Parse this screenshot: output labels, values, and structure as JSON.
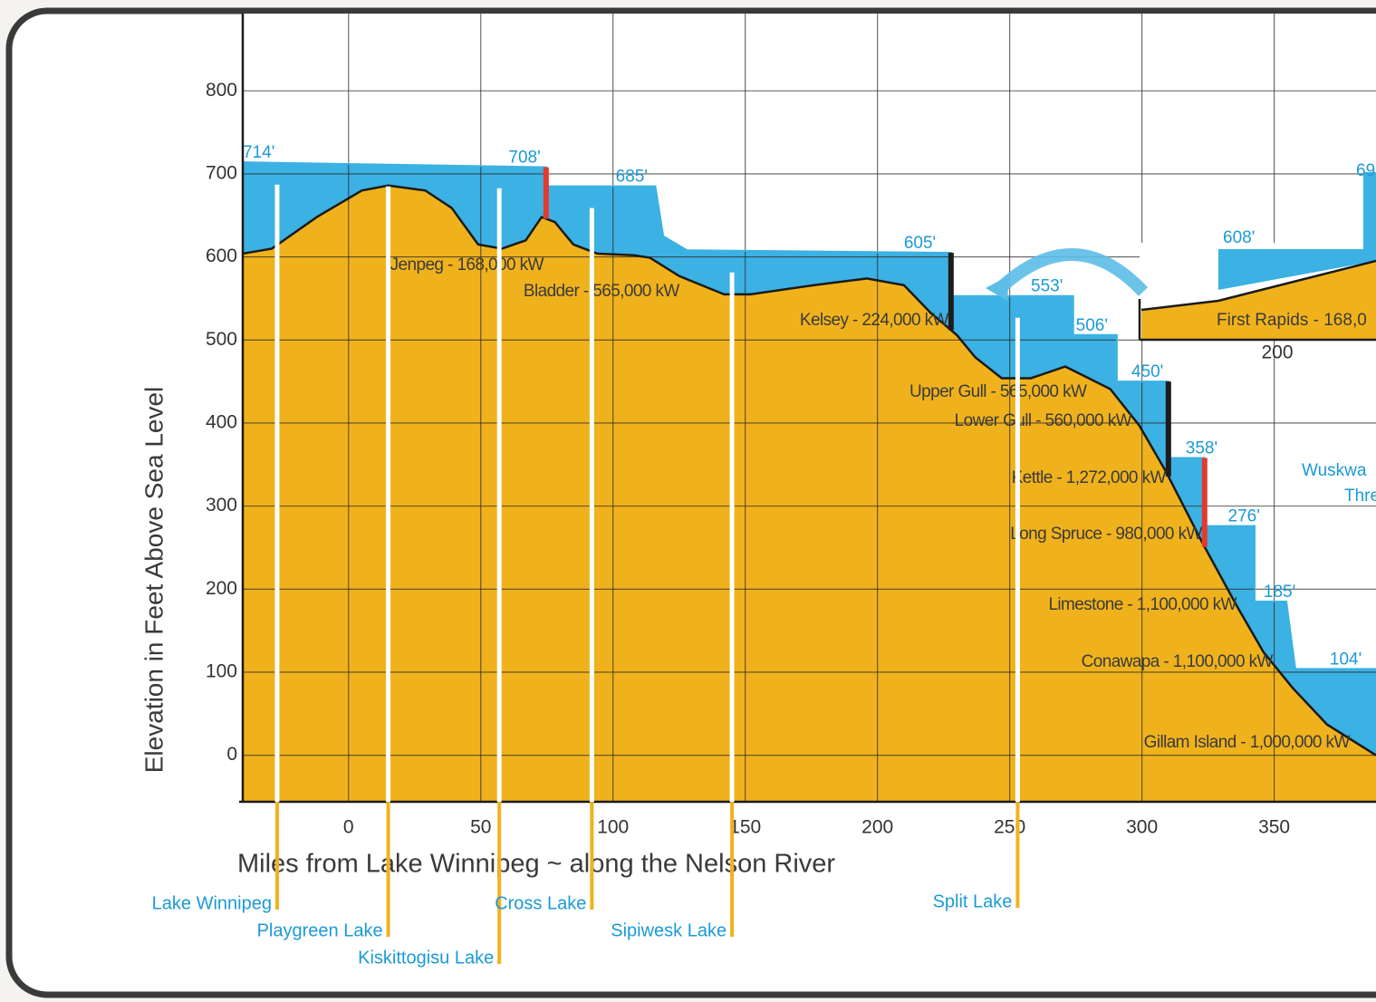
{
  "chart_data": {
    "type": "area",
    "ylabel": "Elevation in Feet Above Sea Level",
    "xlabel": "Miles from Lake Winnipeg ~ along the Nelson River",
    "xlim": [
      -40,
      388.5
    ],
    "ylim": [
      -56,
      893
    ],
    "xticks": [
      0,
      50,
      100,
      150,
      200,
      250,
      300,
      350
    ],
    "yticks": [
      0,
      100,
      200,
      300,
      400,
      500,
      600,
      700,
      800
    ],
    "grid": true,
    "terrain": {
      "color": "#f0b21c",
      "x": [
        -40,
        -29,
        -12,
        5,
        15,
        29,
        39,
        49,
        58,
        67,
        73,
        78,
        85,
        94,
        108,
        114,
        125,
        142,
        152,
        176,
        196,
        210,
        220,
        230,
        237,
        247,
        258,
        271,
        278,
        288,
        299,
        309,
        323,
        336,
        346,
        357,
        370,
        388.5
      ],
      "values": [
        604,
        610,
        648,
        680,
        686,
        680,
        659,
        615,
        610,
        620,
        648,
        642,
        615,
        604,
        602,
        599,
        577,
        555,
        555,
        566,
        574,
        566,
        533,
        506,
        479,
        454,
        454,
        468,
        457,
        441,
        397,
        342,
        255,
        179,
        124,
        81,
        37,
        0
      ]
    },
    "water_surface": {
      "color": "#3cb1e3",
      "x": [
        -40,
        74.7,
        74.7,
        116,
        119,
        128,
        227.8,
        227.8,
        274,
        274,
        290.5,
        290.5,
        310,
        310,
        323.7,
        323.7,
        342.6,
        342.6,
        354.6,
        358,
        388.5
      ],
      "values": [
        714,
        708,
        685,
        685,
        625,
        608,
        605,
        553,
        553,
        506,
        506,
        450,
        450,
        358,
        358,
        276,
        276,
        185,
        185,
        104,
        104
      ]
    },
    "water_levels": {
      "color": "#1b9ad6",
      "x": [
        -40,
        60.5,
        101,
        210,
        258,
        275,
        296,
        316.5,
        332.5,
        346,
        371
      ],
      "values": [
        714,
        708,
        685,
        605,
        553,
        506,
        450,
        358,
        276,
        185,
        104
      ],
      "value_labels": [
        "714'",
        "708'",
        "685'",
        "605'",
        "553'",
        "506'",
        "450'",
        "358'",
        "276'",
        "185'",
        "104'"
      ]
    },
    "dams": [
      {
        "label": "Jenpeg - 168,000 kW",
        "x": 74.7,
        "color": "#e23b2e"
      },
      {
        "label": "Bladder - 565,000 kW",
        "x": 125
      },
      {
        "label": "Kelsey - 224,000 kW",
        "x": 227.8,
        "color": "#1c1c1c"
      },
      {
        "label": "Upper Gull - 565,000 kW",
        "x": 279
      },
      {
        "label": "Lower Gull - 560,000 kW",
        "x": 296
      },
      {
        "label": "Kettle - 1,272,000 kW",
        "x": 310,
        "color": "#1c1c1c"
      },
      {
        "label": "Long Spruce - 980,000 kW",
        "x": 323.7,
        "color": "#e23b2e"
      },
      {
        "label": "Limestone - 1,100,000 kW",
        "x": 335.7
      },
      {
        "label": "Conawapa - 1,100,000 kW",
        "x": 349.4
      },
      {
        "label": "Gillam Island - 1,000,000 kW",
        "x": 378.5
      }
    ],
    "lakes": [
      {
        "name": "Lake Winnipeg",
        "x": -27
      },
      {
        "name": "Playgreen Lake",
        "x": 15
      },
      {
        "name": "Kiskittogisu Lake",
        "x": 57
      },
      {
        "name": "Cross Lake",
        "x": 92
      },
      {
        "name": "Sipiwesk Lake",
        "x": 145
      },
      {
        "name": "Split Lake",
        "x": 253
      }
    ],
    "inset": {
      "label": "First Rapids - 168,0",
      "level": 608,
      "level_label": "608'",
      "tick": 200,
      "edge_level_label": "69",
      "notes": [
        "Wuskwa",
        "Thre"
      ]
    }
  }
}
